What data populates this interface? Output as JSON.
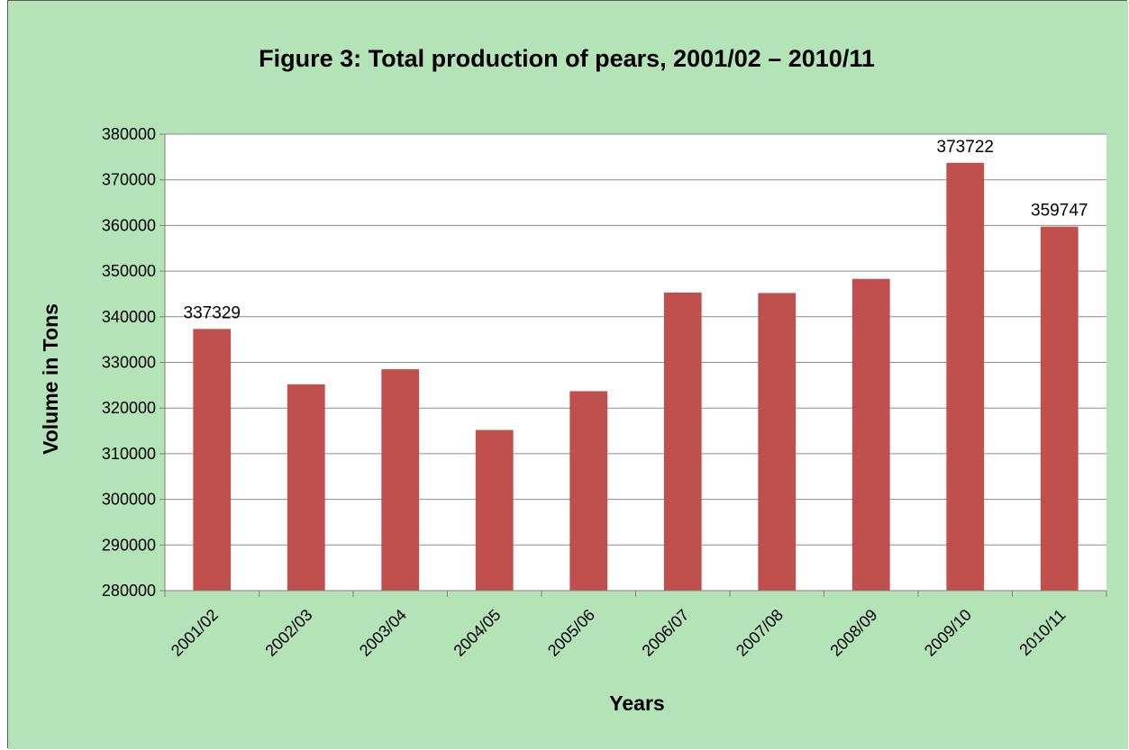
{
  "colors": {
    "background": "#b5e3b8",
    "plot_area": "#ffffff",
    "bar": "#c0504d",
    "gridline": "#8c8c8c",
    "axis": "#7f7f7f"
  },
  "chart_data": {
    "type": "bar",
    "title": "Figure 3: Total production of pears, 2001/02 – 2010/11",
    "xlabel": "Years",
    "ylabel": "Volume in Tons",
    "ylim": [
      280000,
      380000
    ],
    "y_tick_step": 10000,
    "y_ticks": [
      "280000",
      "290000",
      "300000",
      "310000",
      "320000",
      "330000",
      "340000",
      "350000",
      "360000",
      "370000",
      "380000"
    ],
    "grid": true,
    "legend": "none",
    "categories": [
      "2001/02",
      "2002/03",
      "2003/04",
      "2004/05",
      "2005/06",
      "2006/07",
      "2007/08",
      "2008/09",
      "2009/10",
      "2010/11"
    ],
    "values": [
      337329,
      325200,
      328500,
      315200,
      323700,
      345300,
      345200,
      348300,
      373722,
      359747
    ],
    "data_labels": [
      "337329",
      "",
      "",
      "",
      "",
      "",
      "",
      "",
      "373722",
      "359747"
    ]
  }
}
